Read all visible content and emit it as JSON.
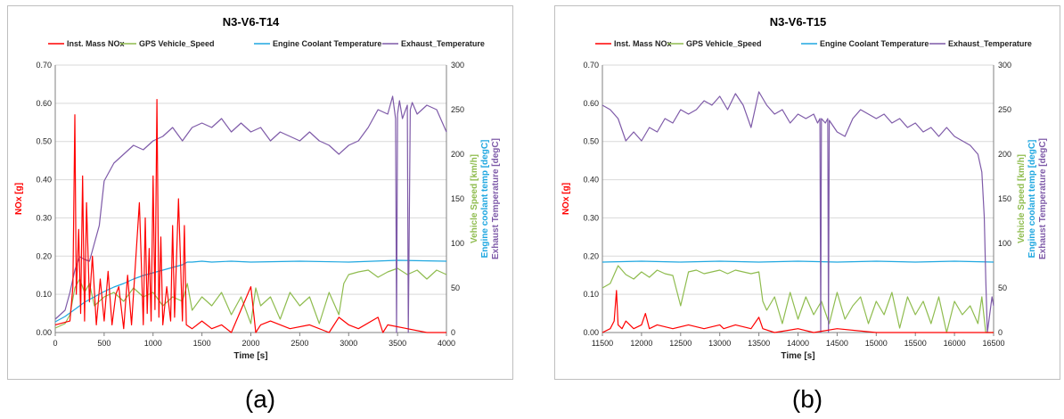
{
  "colors": {
    "nox": "#ff0000",
    "speed": "#8fbc4f",
    "coolant": "#1fa7e0",
    "exhaust": "#7e5aa8",
    "grid": "#d9d9d9",
    "axis": "#808080"
  },
  "captions": {
    "a": "(a)",
    "b": "(b)"
  },
  "chart_data": [
    {
      "type": "line",
      "title": "N3-V6-T14",
      "xlabel": "Time [s]",
      "ylabel_left": "NOx [g]",
      "ylabel_right": [
        "Vehicle Speed [km/h]",
        "Engine coolant temp [degC]",
        "Exhaust Temperature [degC]"
      ],
      "xlim": [
        0,
        4000
      ],
      "ylim_left": [
        0,
        0.7
      ],
      "ylim_right": [
        0,
        300
      ],
      "xticks": [
        0,
        500,
        1000,
        1500,
        2000,
        2500,
        3000,
        3500,
        4000
      ],
      "xtick_labels": [
        "0",
        "500",
        "1000",
        "1500",
        "2000",
        "2500",
        "3000",
        "3500",
        "4000"
      ],
      "yticks_left": [
        "0.00",
        "0.10",
        "0.20",
        "0.30",
        "0.40",
        "0.50",
        "0.60",
        "0.70"
      ],
      "yticks_right": [
        "0",
        "50",
        "100",
        "150",
        "200",
        "250",
        "300"
      ],
      "grid": true,
      "legend_position": "top",
      "series": [
        {
          "name": "Inst. Mass NOx",
          "axis": "left",
          "color": "#ff0000",
          "x": [
            0,
            150,
            180,
            200,
            215,
            240,
            260,
            280,
            300,
            320,
            350,
            380,
            420,
            460,
            500,
            540,
            580,
            620,
            650,
            700,
            740,
            780,
            820,
            860,
            900,
            920,
            940,
            960,
            980,
            1000,
            1020,
            1040,
            1060,
            1080,
            1100,
            1140,
            1180,
            1200,
            1220,
            1260,
            1300,
            1320,
            1340,
            1400,
            1500,
            1600,
            1700,
            1800,
            2000,
            2050,
            2100,
            2200,
            2400,
            2600,
            2800,
            2900,
            3000,
            3100,
            3300,
            3350,
            3400,
            3600,
            3800,
            4000
          ],
          "y": [
            0.02,
            0.03,
            0.12,
            0.57,
            0.1,
            0.27,
            0.05,
            0.41,
            0.03,
            0.34,
            0.08,
            0.2,
            0.02,
            0.14,
            0.03,
            0.16,
            0.02,
            0.1,
            0.12,
            0.01,
            0.15,
            0.02,
            0.18,
            0.34,
            0.02,
            0.3,
            0.05,
            0.22,
            0.03,
            0.41,
            0.06,
            0.61,
            0.04,
            0.25,
            0.02,
            0.12,
            0.03,
            0.28,
            0.04,
            0.35,
            0.03,
            0.28,
            0.02,
            0.01,
            0.03,
            0.01,
            0.02,
            0.0,
            0.12,
            0.0,
            0.02,
            0.03,
            0.01,
            0.02,
            0.0,
            0.04,
            0.02,
            0.01,
            0.04,
            0.0,
            0.02,
            0.01,
            0.0,
            0.0
          ]
        },
        {
          "name": "GPS Vehicle_Speed",
          "axis": "right",
          "color": "#8fbc4f",
          "x": [
            0,
            100,
            150,
            200,
            250,
            300,
            350,
            400,
            500,
            600,
            700,
            800,
            900,
            1000,
            1100,
            1200,
            1300,
            1350,
            1400,
            1500,
            1600,
            1700,
            1800,
            1900,
            2000,
            2050,
            2100,
            2200,
            2300,
            2400,
            2500,
            2600,
            2700,
            2800,
            2900,
            2950,
            3000,
            3100,
            3200,
            3300,
            3400,
            3500,
            3600,
            3700,
            3800,
            3900,
            4000
          ],
          "y": [
            5,
            10,
            20,
            50,
            60,
            45,
            55,
            30,
            40,
            45,
            35,
            50,
            40,
            45,
            30,
            40,
            35,
            55,
            25,
            40,
            30,
            45,
            20,
            40,
            10,
            50,
            30,
            40,
            15,
            45,
            30,
            40,
            10,
            45,
            20,
            55,
            65,
            68,
            70,
            62,
            68,
            72,
            65,
            70,
            60,
            70,
            65
          ]
        },
        {
          "name": "Engine Coolant Temperature",
          "axis": "right",
          "color": "#1fa7e0",
          "x": [
            0,
            100,
            200,
            300,
            400,
            500,
            600,
            700,
            800,
            900,
            1000,
            1100,
            1200,
            1300,
            1350,
            1400,
            1500,
            1600,
            1800,
            2000,
            2500,
            3000,
            3500,
            4000
          ],
          "y": [
            12,
            18,
            26,
            34,
            40,
            46,
            51,
            55,
            60,
            64,
            67,
            70,
            73,
            76,
            79,
            79,
            80,
            79,
            80,
            79,
            80,
            79,
            81,
            80
          ]
        },
        {
          "name": "Exhaust_Temperature",
          "axis": "right",
          "color": "#7e5aa8",
          "x": [
            0,
            100,
            150,
            200,
            250,
            300,
            350,
            400,
            450,
            500,
            600,
            700,
            800,
            900,
            1000,
            1100,
            1200,
            1300,
            1400,
            1500,
            1600,
            1700,
            1800,
            1900,
            2000,
            2100,
            2200,
            2300,
            2400,
            2500,
            2600,
            2700,
            2800,
            2900,
            3000,
            3100,
            3200,
            3300,
            3400,
            3450,
            3480,
            3490,
            3500,
            3520,
            3550,
            3600,
            3610,
            3630,
            3650,
            3700,
            3800,
            3900,
            4000
          ],
          "y": [
            15,
            25,
            45,
            70,
            85,
            82,
            80,
            100,
            120,
            170,
            190,
            200,
            210,
            205,
            215,
            220,
            230,
            215,
            230,
            235,
            230,
            240,
            225,
            235,
            225,
            230,
            215,
            225,
            220,
            215,
            225,
            215,
            210,
            200,
            210,
            215,
            230,
            250,
            245,
            265,
            240,
            0,
            245,
            260,
            240,
            255,
            0,
            250,
            258,
            245,
            255,
            250,
            225
          ]
        }
      ]
    },
    {
      "type": "line",
      "title": "N3-V6-T15",
      "xlabel": "Time [s]",
      "ylabel_left": "NOx [g]",
      "ylabel_right": [
        "Vehicle Speed [km/h]",
        "Engine coolant temp [degC]",
        "Exhaust Temperature [degC]"
      ],
      "xlim": [
        11500,
        16500
      ],
      "ylim_left": [
        0,
        0.7
      ],
      "ylim_right": [
        0,
        300
      ],
      "xticks": [
        11500,
        12000,
        12500,
        13000,
        13500,
        14000,
        14500,
        15000,
        15500,
        16000,
        16500
      ],
      "xtick_labels": [
        "11500",
        "12000",
        "12500",
        "13000",
        "13500",
        "14000",
        "14500",
        "15000",
        "15500",
        "16000",
        "16500"
      ],
      "yticks_left": [
        "0.00",
        "0.10",
        "0.20",
        "0.30",
        "0.40",
        "0.50",
        "0.60",
        "0.70"
      ],
      "yticks_right": [
        "0",
        "50",
        "100",
        "150",
        "200",
        "250",
        "300"
      ],
      "grid": true,
      "legend_position": "top",
      "series": [
        {
          "name": "Inst. Mass NOx",
          "axis": "left",
          "color": "#ff0000",
          "x": [
            11500,
            11600,
            11650,
            11680,
            11700,
            11750,
            11800,
            11900,
            12000,
            12050,
            12100,
            12200,
            12400,
            12600,
            12800,
            13000,
            13050,
            13200,
            13400,
            13500,
            13550,
            13700,
            14000,
            14200,
            14500,
            15000,
            15500,
            16000,
            16500
          ],
          "y": [
            0.0,
            0.01,
            0.03,
            0.11,
            0.02,
            0.01,
            0.03,
            0.01,
            0.02,
            0.05,
            0.01,
            0.02,
            0.01,
            0.02,
            0.01,
            0.02,
            0.01,
            0.02,
            0.01,
            0.04,
            0.01,
            0.0,
            0.01,
            0.0,
            0.01,
            0.0,
            0.0,
            0.0,
            0.0
          ]
        },
        {
          "name": "GPS Vehicle_Speed",
          "axis": "right",
          "color": "#8fbc4f",
          "x": [
            11500,
            11600,
            11700,
            11800,
            11900,
            12000,
            12100,
            12200,
            12300,
            12400,
            12500,
            12600,
            12700,
            12800,
            12900,
            13000,
            13100,
            13200,
            13300,
            13400,
            13500,
            13550,
            13600,
            13700,
            13800,
            13900,
            14000,
            14100,
            14200,
            14300,
            14400,
            14500,
            14600,
            14700,
            14800,
            14900,
            15000,
            15100,
            15200,
            15300,
            15400,
            15500,
            15600,
            15700,
            15800,
            15900,
            16000,
            16100,
            16200,
            16300,
            16350,
            16400,
            16500
          ],
          "y": [
            50,
            55,
            75,
            65,
            60,
            68,
            62,
            70,
            66,
            64,
            30,
            68,
            70,
            66,
            68,
            70,
            66,
            70,
            68,
            66,
            68,
            35,
            25,
            40,
            10,
            45,
            15,
            40,
            20,
            35,
            10,
            45,
            15,
            30,
            40,
            10,
            35,
            20,
            45,
            5,
            40,
            20,
            35,
            10,
            40,
            0,
            35,
            20,
            30,
            10,
            40,
            0,
            0
          ]
        },
        {
          "name": "Engine Coolant Temperature",
          "axis": "right",
          "color": "#1fa7e0",
          "x": [
            11500,
            12000,
            12500,
            13000,
            13500,
            14000,
            14500,
            15000,
            15500,
            16000,
            16500
          ],
          "y": [
            79,
            80,
            79,
            80,
            79,
            80,
            79,
            80,
            79,
            80,
            79
          ]
        },
        {
          "name": "Exhaust_Temperature",
          "axis": "right",
          "color": "#7e5aa8",
          "x": [
            11500,
            11600,
            11700,
            11800,
            11900,
            12000,
            12100,
            12200,
            12300,
            12400,
            12500,
            12600,
            12700,
            12800,
            12900,
            13000,
            13100,
            13200,
            13300,
            13400,
            13500,
            13600,
            13700,
            13800,
            13900,
            14000,
            14100,
            14200,
            14250,
            14280,
            14290,
            14300,
            14350,
            14380,
            14390,
            14400,
            14500,
            14600,
            14700,
            14800,
            14900,
            15000,
            15100,
            15200,
            15300,
            15400,
            15500,
            15600,
            15700,
            15800,
            15900,
            16000,
            16100,
            16200,
            16300,
            16350,
            16380,
            16400,
            16420,
            16450,
            16480,
            16500
          ],
          "y": [
            255,
            250,
            240,
            215,
            225,
            215,
            230,
            225,
            240,
            235,
            250,
            245,
            250,
            260,
            255,
            265,
            250,
            268,
            255,
            230,
            270,
            255,
            245,
            250,
            235,
            245,
            240,
            245,
            235,
            240,
            0,
            240,
            235,
            240,
            0,
            238,
            225,
            220,
            240,
            250,
            245,
            240,
            245,
            235,
            240,
            230,
            235,
            225,
            230,
            220,
            230,
            220,
            215,
            210,
            200,
            180,
            130,
            60,
            0,
            20,
            40,
            30
          ]
        }
      ]
    }
  ]
}
